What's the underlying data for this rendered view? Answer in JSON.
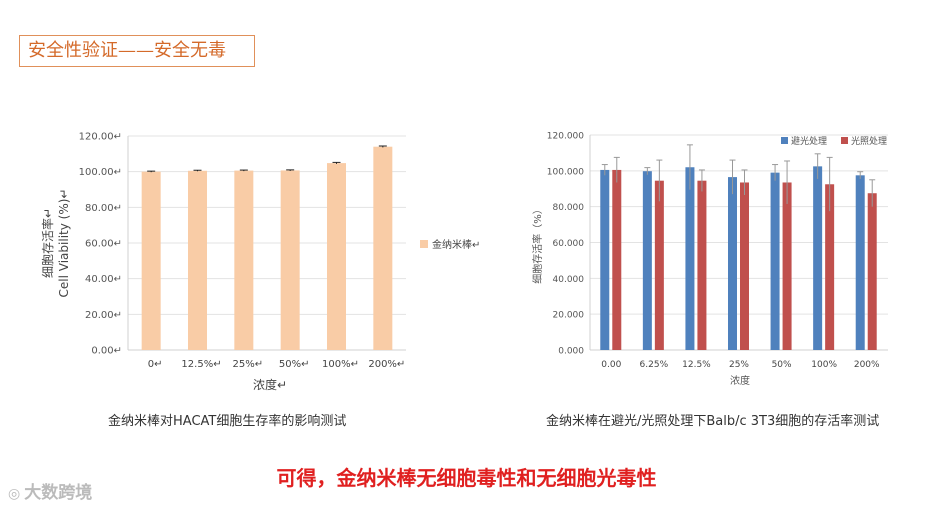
{
  "header": {
    "title": "安全性验证——安全无毒"
  },
  "chart_data": [
    {
      "type": "bar",
      "title": "金纳米棒对HACAT细胞生存率的影响测试",
      "xlabel": "浓度↵",
      "ylabel_line1": "细胞存活率↵",
      "ylabel_line2": "Cell Viability (%)↵",
      "categories": [
        "0↵",
        "12.5%↵",
        "25%↵",
        "50%↵",
        "100%↵",
        "200%↵"
      ],
      "y_ticks": [
        "0.00↵",
        "20.00↵",
        "40.00↵",
        "60.00↵",
        "80.00↵",
        "100.00↵",
        "120.00↵"
      ],
      "ylim": [
        0,
        120
      ],
      "series": [
        {
          "name": "金纳米棒↵",
          "color": "#f9cca6",
          "values": [
            100.0,
            100.5,
            100.6,
            100.7,
            104.8,
            114.0
          ],
          "errors": [
            0.3,
            0.3,
            0.3,
            0.3,
            0.4,
            0.4
          ]
        }
      ],
      "legend_position": "right"
    },
    {
      "type": "bar",
      "title": "金纳米棒在避光/光照处理下Balb/c 3T3细胞的存活率测试",
      "xlabel": "浓度",
      "ylabel": "细胞存活率（%）",
      "categories": [
        "0.00",
        "6.25%",
        "12.5%",
        "25%",
        "50%",
        "100%",
        "200%"
      ],
      "y_ticks": [
        "0.000",
        "20.000",
        "40.000",
        "60.000",
        "80.000",
        "100.000",
        "120.000"
      ],
      "ylim": [
        0,
        120
      ],
      "series": [
        {
          "name": "避光处理",
          "color": "#4f81bd",
          "values": [
            100.5,
            99.8,
            102.0,
            96.5,
            99.0,
            102.5,
            97.5
          ],
          "errors": [
            3.0,
            2.0,
            12.5,
            9.5,
            4.5,
            7.0,
            2.0
          ]
        },
        {
          "name": "光照处理",
          "color": "#c0504d",
          "values": [
            100.5,
            94.5,
            94.5,
            93.5,
            93.5,
            92.5,
            87.5
          ],
          "errors": [
            7.0,
            11.5,
            6.0,
            7.0,
            12.0,
            15.0,
            7.5
          ]
        }
      ],
      "legend_position": "top-right"
    }
  ],
  "footer": {
    "conclusion": "可得，金纳米棒无细胞毒性和无细胞光毒性",
    "watermark_icon": "◎",
    "watermark_text": "大数跨境"
  }
}
